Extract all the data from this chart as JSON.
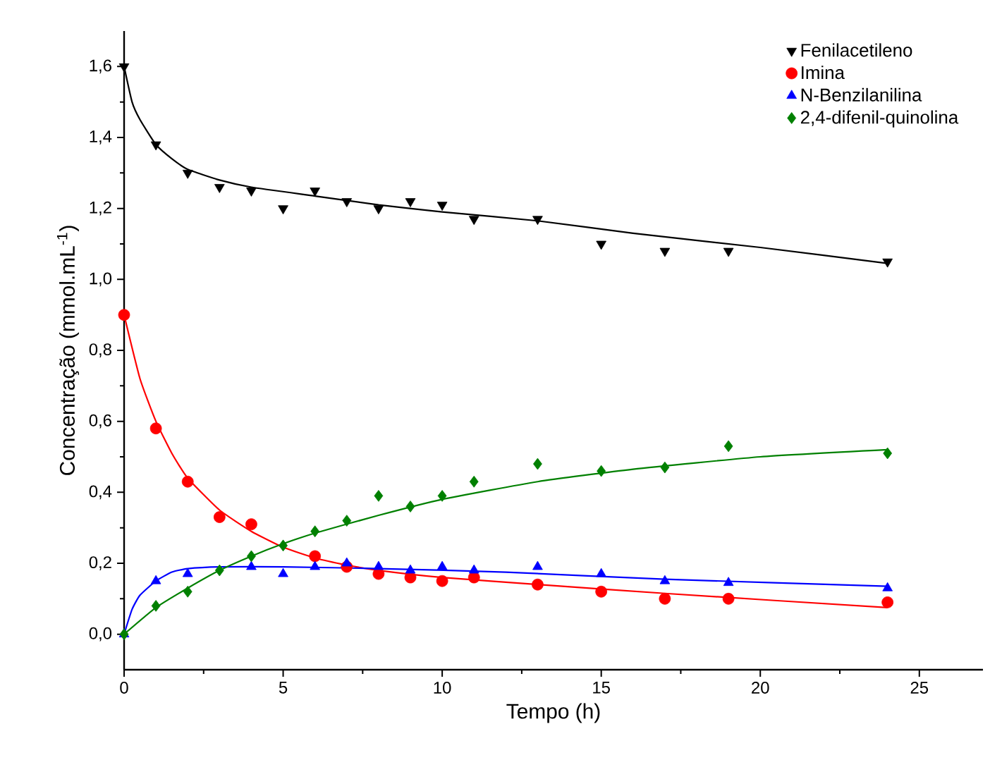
{
  "chart_data": {
    "type": "scatter",
    "xlabel": "Tempo (h)",
    "ylabel": "Concentração (mmol.mL$^{-1}$)",
    "xlim": [
      0,
      27
    ],
    "ylim": [
      -0.1,
      1.7
    ],
    "xticks": [
      0,
      5,
      10,
      15,
      20,
      25
    ],
    "yticks": [
      {
        "value": 0,
        "label": "0,0"
      },
      {
        "value": 0.2,
        "label": "0,2"
      },
      {
        "value": 0.4,
        "label": "0,4"
      },
      {
        "value": 0.6,
        "label": "0,6"
      },
      {
        "value": 0.8,
        "label": "0,8"
      },
      {
        "value": 1.0,
        "label": "1,0"
      },
      {
        "value": 1.2,
        "label": "1,2"
      },
      {
        "value": 1.4,
        "label": "1,4"
      },
      {
        "value": 1.6,
        "label": "1,6"
      }
    ],
    "x": [
      0,
      1,
      2,
      3,
      4,
      5,
      6,
      7,
      8,
      9,
      10,
      11,
      13,
      15,
      17,
      19,
      24
    ],
    "legend": "top right",
    "grid": false,
    "series": [
      {
        "name": "Fenilacetileno",
        "color": "#000000",
        "marker": "triangle-down",
        "values": [
          1.6,
          1.38,
          1.3,
          1.26,
          1.25,
          1.2,
          1.25,
          1.22,
          1.2,
          1.22,
          1.21,
          1.17,
          1.17,
          1.1,
          1.08,
          1.08,
          1.05
        ]
      },
      {
        "name": "Imina",
        "color": "#ff0000",
        "marker": "circle",
        "x": [
          0,
          1,
          2,
          3,
          4,
          6,
          7,
          8,
          9,
          10,
          11,
          13,
          15,
          17,
          19,
          24
        ],
        "values": [
          0.9,
          0.58,
          0.43,
          0.33,
          0.31,
          0.22,
          0.19,
          0.17,
          0.16,
          0.15,
          0.16,
          0.14,
          0.12,
          0.1,
          0.1,
          0.09
        ]
      },
      {
        "name": "N-Benzilanilina",
        "color": "#0000ff",
        "marker": "triangle",
        "values": [
          0,
          0.15,
          0.17,
          null,
          0.19,
          0.17,
          0.19,
          0.2,
          0.19,
          0.18,
          0.19,
          0.18,
          0.19,
          0.17,
          0.15,
          0.145,
          0.13
        ]
      },
      {
        "name": "2,4-difenil-quinolina",
        "color": "#008000",
        "marker": "diamond",
        "values": [
          0,
          0.08,
          0.12,
          0.18,
          0.22,
          0.25,
          0.29,
          0.32,
          0.39,
          0.36,
          0.39,
          0.43,
          0.48,
          0.46,
          0.47,
          0.53,
          0.51
        ]
      },
      {
        "type": "line",
        "color": "#000000",
        "x": [
          0,
          0.25,
          0.5,
          1,
          1.5,
          2,
          3,
          4,
          6,
          8,
          10,
          13,
          16,
          20,
          24
        ],
        "values": [
          1.6,
          1.5,
          1.45,
          1.38,
          1.34,
          1.31,
          1.28,
          1.26,
          1.235,
          1.21,
          1.19,
          1.165,
          1.13,
          1.09,
          1.045
        ]
      },
      {
        "type": "line",
        "color": "#ff0000",
        "x": [
          0,
          0.5,
          1,
          1.5,
          2,
          3,
          4,
          5,
          6,
          7,
          8,
          10,
          13,
          17,
          24
        ],
        "values": [
          0.9,
          0.72,
          0.6,
          0.51,
          0.44,
          0.35,
          0.29,
          0.245,
          0.215,
          0.195,
          0.18,
          0.16,
          0.14,
          0.115,
          0.075
        ]
      },
      {
        "type": "line",
        "color": "#0000ff",
        "x": [
          0,
          0.25,
          0.5,
          1,
          1.5,
          2,
          3,
          5,
          8,
          12,
          17,
          24
        ],
        "values": [
          0,
          0.07,
          0.11,
          0.15,
          0.175,
          0.185,
          0.19,
          0.19,
          0.185,
          0.175,
          0.155,
          0.135
        ]
      },
      {
        "type": "line",
        "color": "#008000",
        "x": [
          0,
          1,
          2,
          3,
          4,
          5,
          6,
          8,
          10,
          13,
          16,
          20,
          24
        ],
        "values": [
          0,
          0.075,
          0.13,
          0.18,
          0.22,
          0.255,
          0.285,
          0.335,
          0.38,
          0.43,
          0.465,
          0.5,
          0.52
        ]
      }
    ]
  }
}
